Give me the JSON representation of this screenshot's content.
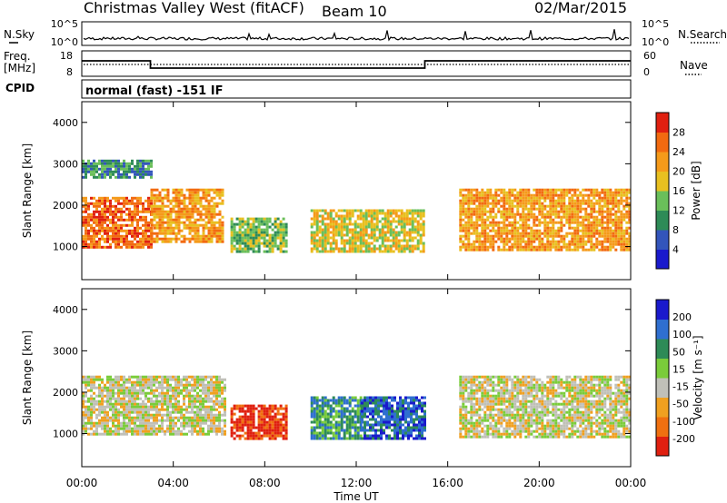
{
  "header": {
    "station": "Christmas Valley West (fitACF)",
    "beam": "Beam 10",
    "date": "02/Mar/2015"
  },
  "noise_panel": {
    "left_label": "N.Sky",
    "right_label": "N.Search",
    "left_ticks": [
      "10^5",
      "10^0"
    ],
    "right_ticks": [
      "10^5",
      "10^0"
    ]
  },
  "freq_panel": {
    "label_1": "Freq.",
    "label_2": "[MHz]",
    "right_label": "Nave",
    "left_ticks": [
      "18",
      "8"
    ],
    "right_ticks": [
      "60",
      "0"
    ]
  },
  "cpid_panel": {
    "label": "CPID",
    "text": "normal (fast) -151 IF"
  },
  "power_panel": {
    "ylabel": "Slant Range [km]",
    "yticks": [
      "4000",
      "3000",
      "2000",
      "1000"
    ],
    "colorbar_label": "Power [dB]",
    "colorbar_ticks": [
      "28",
      "24",
      "20",
      "16",
      "12",
      "8",
      "4"
    ]
  },
  "velocity_panel": {
    "ylabel": "Slant Range [km]",
    "yticks": [
      "4000",
      "3000",
      "2000",
      "1000"
    ],
    "colorbar_label": "Velocity [m s⁻¹]",
    "colorbar_ticks": [
      "200",
      "100",
      "50",
      "15",
      "-15",
      "-50",
      "-100",
      "-200"
    ]
  },
  "x_axis": {
    "label": "Time UT",
    "ticks": [
      "00:00",
      "04:00",
      "08:00",
      "12:00",
      "16:00",
      "20:00",
      "00:00"
    ]
  },
  "colors": {
    "power_scale": [
      "#1a1acc",
      "#3355bb",
      "#2e8b57",
      "#6abf5a",
      "#e8c020",
      "#f59a1a",
      "#f26a10",
      "#e02010"
    ],
    "velocity_scale": [
      "#1a1acc",
      "#2f6fd0",
      "#2e8b57",
      "#7acc3a",
      "#c0c0b8",
      "#f0a020",
      "#f07010",
      "#e02010"
    ]
  },
  "chart_data": {
    "type": "heatmap",
    "title": "Christmas Valley West (fitACF)",
    "xlabel": "Time UT",
    "ylabel": "Slant Range [km]",
    "xlim": [
      0,
      24
    ],
    "ylim": [
      200,
      4500
    ],
    "panels": [
      {
        "name": "Power",
        "unit": "dB",
        "colorbar_range": [
          0,
          32
        ],
        "echo_regions": [
          {
            "t_start": 0.0,
            "t_end": 3.0,
            "range_low": 1000,
            "range_high": 2200,
            "level": 26
          },
          {
            "t_start": 3.0,
            "t_end": 6.2,
            "range_low": 1100,
            "range_high": 2400,
            "level": 22
          },
          {
            "t_start": 6.5,
            "t_end": 9.0,
            "range_low": 900,
            "range_high": 1700,
            "level": 14
          },
          {
            "t_start": 10.0,
            "t_end": 15.0,
            "range_low": 900,
            "range_high": 1900,
            "level": 16
          },
          {
            "t_start": 16.5,
            "t_end": 24.0,
            "range_low": 900,
            "range_high": 2400,
            "level": 24
          },
          {
            "t_start": 0.0,
            "t_end": 3.0,
            "range_low": 2700,
            "range_high": 3100,
            "level": 8
          }
        ]
      },
      {
        "name": "Velocity",
        "unit": "m s-1",
        "colorbar_range": [
          -250,
          250
        ],
        "echo_regions": [
          {
            "t_start": 0.0,
            "t_end": 6.2,
            "range_low": 1000,
            "range_high": 2400,
            "level": 0
          },
          {
            "t_start": 6.5,
            "t_end": 9.0,
            "range_low": 900,
            "range_high": 1700,
            "level": -180
          },
          {
            "t_start": 10.0,
            "t_end": 12.2,
            "range_low": 900,
            "range_high": 1900,
            "level": 60
          },
          {
            "t_start": 12.2,
            "t_end": 15.0,
            "range_low": 900,
            "range_high": 1900,
            "level": 110
          },
          {
            "t_start": 16.5,
            "t_end": 24.0,
            "range_low": 900,
            "range_high": 2400,
            "level": 0
          }
        ]
      }
    ],
    "frequency_MHz": [
      {
        "t_start": 0.0,
        "t_end": 3.0,
        "value": 14.5
      },
      {
        "t_start": 3.0,
        "t_end": 15.0,
        "value": 10.5
      },
      {
        "t_start": 15.0,
        "t_end": 24.0,
        "value": 14.5
      }
    ]
  }
}
